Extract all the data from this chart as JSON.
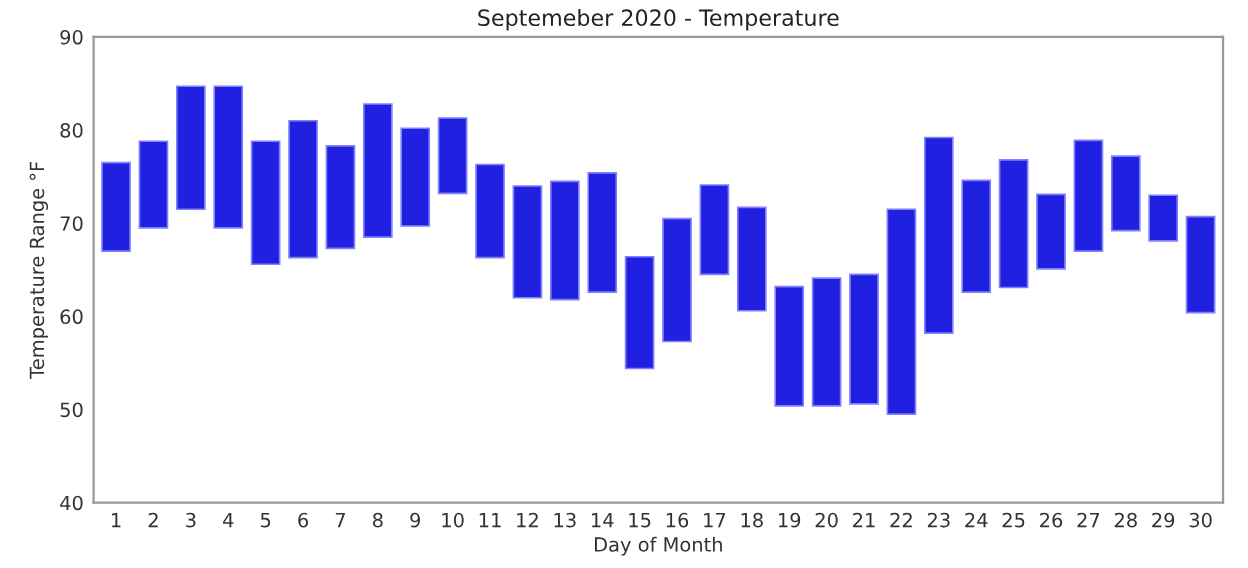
{
  "chart_data": {
    "type": "bar",
    "title": "Septemeber 2020 - Temperature",
    "xlabel": "Day of Month",
    "ylabel": "Temperature Range °F",
    "categories": [
      "1",
      "2",
      "3",
      "4",
      "5",
      "6",
      "7",
      "8",
      "9",
      "10",
      "11",
      "12",
      "13",
      "14",
      "15",
      "16",
      "17",
      "18",
      "19",
      "20",
      "21",
      "22",
      "23",
      "24",
      "25",
      "26",
      "27",
      "28",
      "29",
      "30"
    ],
    "base": [
      67,
      69.5,
      71.5,
      69.5,
      65.6,
      66.3,
      67.3,
      68.5,
      69.7,
      73.2,
      66.3,
      62,
      61.8,
      62.6,
      54.4,
      57.3,
      64.5,
      60.6,
      50.4,
      50.4,
      50.6,
      49.5,
      58.2,
      62.6,
      63.1,
      65.1,
      67.0,
      69.2,
      68.1,
      60.4
    ],
    "values": [
      9.5,
      9.3,
      13.2,
      15.2,
      13.2,
      14.7,
      11.0,
      14.3,
      10.5,
      8.1,
      10.0,
      12.0,
      12.7,
      12.8,
      12.0,
      13.2,
      9.6,
      11.1,
      12.8,
      13.7,
      13.9,
      22.0,
      21.0,
      12.0,
      13.7,
      8.0,
      11.9,
      8.0,
      4.9,
      10.3
    ],
    "color": "#2020e0",
    "ylim": [
      40,
      90
    ],
    "yticks": [
      40,
      50,
      60,
      70,
      80,
      90
    ],
    "grid": false,
    "legend": false
  }
}
